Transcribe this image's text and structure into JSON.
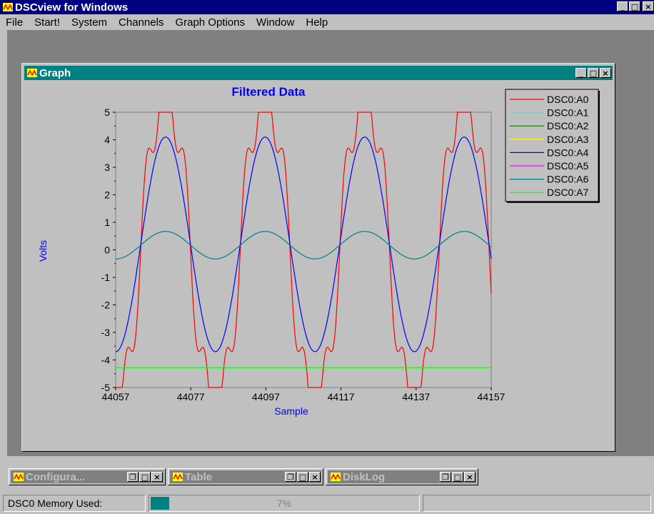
{
  "app": {
    "title": "DSCview for Windows"
  },
  "menu": [
    "File",
    "Start!",
    "System",
    "Channels",
    "Graph Options",
    "Window",
    "Help"
  ],
  "graph_window": {
    "title": "Graph"
  },
  "minimized_windows": [
    {
      "title": "Configura..."
    },
    {
      "title": "Table"
    },
    {
      "title": "DiskLog"
    }
  ],
  "status": {
    "memory_label": "DSC0 Memory Used:",
    "memory_percent": "7%",
    "memory_fraction": 0.07
  },
  "chart_data": {
    "type": "line",
    "title": "Filtered Data",
    "xlabel": "Sample",
    "ylabel": "Volts",
    "xlim": [
      44057,
      44157
    ],
    "ylim": [
      -5,
      5
    ],
    "x_ticks": [
      "44057",
      "44077",
      "44097",
      "44117",
      "44137",
      "44157"
    ],
    "y_ticks": [
      "5",
      "4",
      "3",
      "2",
      "1",
      "0",
      "-1",
      "-2",
      "-3",
      "-4",
      "-5"
    ],
    "legend_position": "right",
    "period_samples": 26.5,
    "series": [
      {
        "name": "DSC0:A0",
        "color": "#ff0000",
        "shape": "clipped-square",
        "amplitude": 4.9
      },
      {
        "name": "DSC0:A1",
        "color": "#00ffff",
        "shape": "none"
      },
      {
        "name": "DSC0:A2",
        "color": "#008000",
        "shape": "none"
      },
      {
        "name": "DSC0:A3",
        "color": "#ffff00",
        "shape": "none"
      },
      {
        "name": "DSC0:A4",
        "color": "#0000ff",
        "shape": "sine",
        "amplitude": 3.9,
        "offset": 0.2
      },
      {
        "name": "DSC0:A5",
        "color": "#ff00ff",
        "shape": "none"
      },
      {
        "name": "DSC0:A6",
        "color": "#008080",
        "shape": "sine",
        "amplitude": 0.5,
        "offset": 0.17
      },
      {
        "name": "DSC0:A7",
        "color": "#00ff00",
        "shape": "constant",
        "value": -4.28
      }
    ]
  }
}
